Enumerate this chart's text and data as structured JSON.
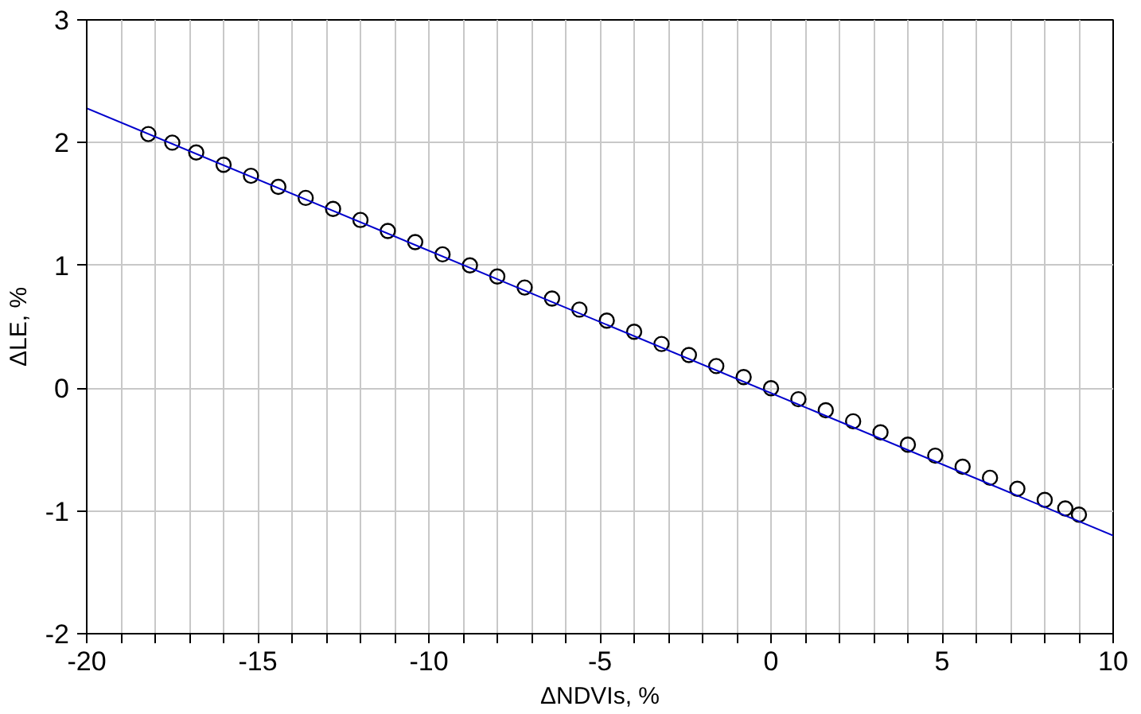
{
  "chart_data": {
    "type": "scatter",
    "xlabel": "ΔNDVIs, %",
    "ylabel": "ΔLE, %",
    "xlim": [
      -20,
      10
    ],
    "ylim": [
      -2,
      3
    ],
    "xticks": [
      -20,
      {
        "value": -19,
        "label": null
      },
      {
        "value": -18,
        "label": null
      },
      {
        "value": -17,
        "label": null
      },
      {
        "value": -16,
        "label": null
      },
      -15,
      {
        "value": -14,
        "label": null
      },
      {
        "value": -13,
        "label": null
      },
      {
        "value": -12,
        "label": null
      },
      {
        "value": -11,
        "label": null
      },
      -10,
      {
        "value": -9,
        "label": null
      },
      {
        "value": -8,
        "label": null
      },
      {
        "value": -7,
        "label": null
      },
      {
        "value": -6,
        "label": null
      },
      -5,
      {
        "value": -4,
        "label": null
      },
      {
        "value": -3,
        "label": null
      },
      {
        "value": -2,
        "label": null
      },
      {
        "value": -1,
        "label": null
      },
      0,
      {
        "value": 1,
        "label": null
      },
      {
        "value": 2,
        "label": null
      },
      {
        "value": 3,
        "label": null
      },
      {
        "value": 4,
        "label": null
      },
      5,
      {
        "value": 6,
        "label": null
      },
      {
        "value": 7,
        "label": null
      },
      {
        "value": 8,
        "label": null
      },
      {
        "value": 9,
        "label": null
      },
      10
    ],
    "yticks": [
      -2,
      -1,
      0,
      1,
      2,
      3
    ],
    "grid": true,
    "series": [
      {
        "marker": "circle",
        "color": "#000000",
        "x": [
          -18.2,
          -17.5,
          -16.8,
          -16.0,
          -15.2,
          -14.4,
          -13.6,
          -12.8,
          -12.0,
          -11.2,
          -10.4,
          -9.6,
          -8.8,
          -8.0,
          -7.2,
          -6.4,
          -5.6,
          -4.8,
          -4.0,
          -3.2,
          -2.4,
          -1.6,
          -0.8,
          0,
          0.8,
          1.6,
          2.4,
          3.2,
          4.0,
          4.8,
          5.6,
          6.4,
          7.2,
          8.0,
          8.6,
          9.0
        ],
        "values": [
          2.07,
          2.0,
          1.92,
          1.82,
          1.73,
          1.64,
          1.55,
          1.46,
          1.37,
          1.28,
          1.19,
          1.09,
          1.0,
          0.91,
          0.82,
          0.73,
          0.64,
          0.55,
          0.46,
          0.36,
          0.27,
          0.18,
          0.09,
          0,
          -0.09,
          -0.18,
          -0.27,
          -0.36,
          -0.46,
          -0.55,
          -0.64,
          -0.73,
          -0.82,
          -0.91,
          -0.98,
          -1.03
        ]
      },
      {
        "type": "line",
        "color": "#0000cc",
        "x": [
          -20,
          10
        ],
        "values": [
          2.28,
          -1.2
        ]
      }
    ]
  }
}
